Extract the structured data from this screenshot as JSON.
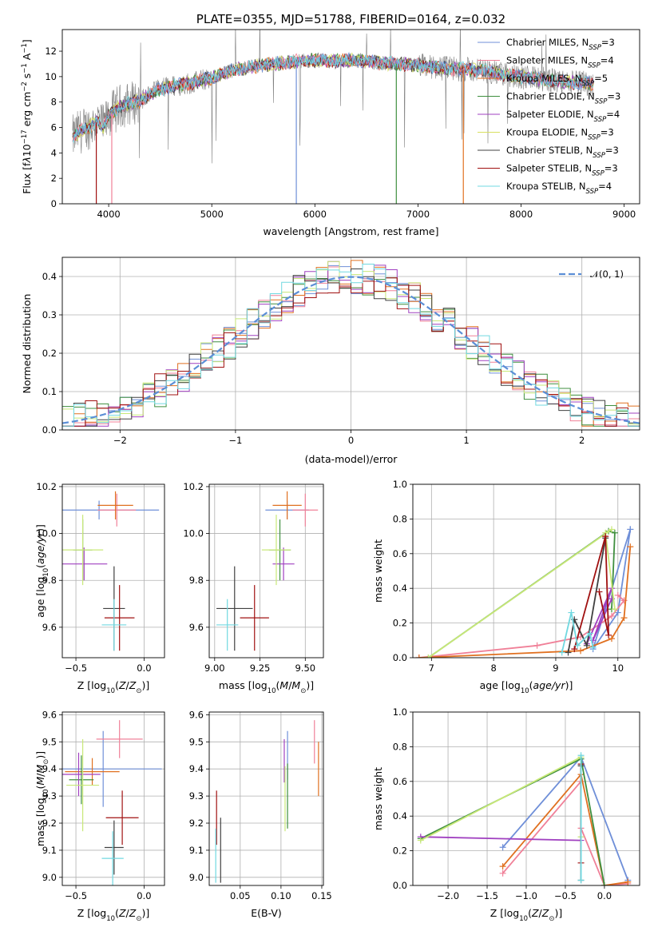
{
  "figure_title": "PLATE=0355, MJD=51788, FIBERID=0164, z=0.032",
  "colors": {
    "models": [
      "#6f8fd8",
      "#f08098",
      "#e07020",
      "#3f8f3f",
      "#a040c0",
      "#d8e060",
      "#404040",
      "#a01010",
      "#70d8e0"
    ],
    "data": "#808080",
    "normal": "#5b8ed6",
    "wide": [
      "#6f8fd8",
      "#f08098",
      "#e07020",
      "#3f8f3f",
      "#a040c0",
      "#c8e878",
      "#404040",
      "#a01010",
      "#70d8e0"
    ]
  },
  "chart_data": [
    {
      "id": "spectrum",
      "type": "line",
      "title": "PLATE=0355, MJD=51788, FIBERID=0164, z=0.032",
      "xlabel": "wavelength [Angstrom, rest frame]",
      "ylabel": "Flux [f",
      "xlim": [
        3550,
        9150
      ],
      "ylim": [
        0,
        13.7
      ],
      "xticks": [
        "4000",
        "5000",
        "6000",
        "7000",
        "8000",
        "9000"
      ],
      "yticks": [
        "0",
        "2",
        "4",
        "6",
        "8",
        "10",
        "12"
      ],
      "legend_position": "upper right",
      "legend": [
        {
          "name": "Chabrier MILES, N",
          "sub": "SSP",
          "tail": "=3"
        },
        {
          "name": "Salpeter MILES, N",
          "sub": "SSP",
          "tail": "=4"
        },
        {
          "name": "Kroupa MILES, N",
          "sub": "SSP",
          "tail": "=5"
        },
        {
          "name": "Chabrier ELODIE, N",
          "sub": "SSP",
          "tail": "=3"
        },
        {
          "name": "Salpeter ELODIE, N",
          "sub": "SSP",
          "tail": "=4"
        },
        {
          "name": "Kroupa ELODIE, N",
          "sub": "SSP",
          "tail": "=3"
        },
        {
          "name": "Chabrier STELIB, N",
          "sub": "SSP",
          "tail": "=3"
        },
        {
          "name": "Salpeter STELIB, N",
          "sub": "SSP",
          "tail": "=3"
        },
        {
          "name": "Kroupa STELIB, N",
          "sub": "SSP",
          "tail": "=4"
        }
      ],
      "continuum": [
        [
          3650,
          5.2
        ],
        [
          3700,
          5.6
        ],
        [
          3800,
          6.0
        ],
        [
          3900,
          6.5
        ],
        [
          3950,
          6.0
        ],
        [
          4000,
          6.9
        ],
        [
          4100,
          7.6
        ],
        [
          4200,
          7.9
        ],
        [
          4300,
          8.1
        ],
        [
          4400,
          8.6
        ],
        [
          4500,
          9.0
        ],
        [
          4600,
          9.2
        ],
        [
          4700,
          9.4
        ],
        [
          4800,
          9.5
        ],
        [
          4900,
          9.7
        ],
        [
          5000,
          9.9
        ],
        [
          5200,
          10.5
        ],
        [
          5400,
          10.8
        ],
        [
          5600,
          11.0
        ],
        [
          5800,
          11.2
        ],
        [
          6000,
          11.3
        ],
        [
          6200,
          11.2
        ],
        [
          6400,
          11.3
        ],
        [
          6600,
          11.1
        ],
        [
          6800,
          11.0
        ],
        [
          7000,
          10.9
        ],
        [
          7200,
          10.7
        ],
        [
          7400,
          10.6
        ],
        [
          7600,
          10.5
        ],
        [
          7800,
          10.2
        ],
        [
          8000,
          10.0
        ],
        [
          8200,
          9.8
        ],
        [
          8400,
          9.6
        ],
        [
          8600,
          9.5
        ],
        [
          8700,
          9.45
        ]
      ]
    },
    {
      "id": "residuals",
      "type": "step",
      "xlabel": "(data-model)/error",
      "ylabel": "Normed distribution",
      "xlim": [
        -2.5,
        2.5
      ],
      "ylim": [
        0,
        0.45
      ],
      "xticks": [
        "−2",
        "−1",
        "0",
        "1",
        "2"
      ],
      "yticks": [
        "0.0",
        "0.1",
        "0.2",
        "0.3",
        "0.4"
      ],
      "bin_width": 0.1,
      "reference_label": "𝒩(0, 1)",
      "legend_position": "upper right"
    },
    {
      "id": "age_vs_Z",
      "type": "errorbar",
      "xlabel": "Z [log",
      "ylabel": "age  [log",
      "xlim": [
        -0.6,
        0.15
      ],
      "ylim": [
        9.47,
        10.21
      ],
      "xticks": [
        "−0.5",
        "0.0"
      ],
      "yticks": [
        "9.6",
        "9.8",
        "10.0",
        "10.2"
      ],
      "points": [
        {
          "x": -0.33,
          "y": 10.1,
          "xe": 0.44,
          "ye": 0.04,
          "c": 0
        },
        {
          "x": -0.2,
          "y": 10.1,
          "xe": 0.14,
          "ye": 0.07,
          "c": 1
        },
        {
          "x": -0.21,
          "y": 10.12,
          "xe": 0.13,
          "ye": 0.06,
          "c": 2
        },
        {
          "x": -0.45,
          "y": 9.93,
          "xe": 0.07,
          "ye": 0.13,
          "c": 3
        },
        {
          "x": -0.44,
          "y": 9.87,
          "xe": 0.17,
          "ye": 0.07,
          "c": 4
        },
        {
          "x": -0.45,
          "y": 9.93,
          "xe": 0.15,
          "ye": 0.15,
          "c": 5
        },
        {
          "x": -0.22,
          "y": 9.68,
          "xe": 0.08,
          "ye": 0.18,
          "c": 6
        },
        {
          "x": -0.18,
          "y": 9.64,
          "xe": 0.11,
          "ye": 0.14,
          "c": 7
        },
        {
          "x": -0.22,
          "y": 9.61,
          "xe": 0.09,
          "ye": 0.11,
          "c": 8
        }
      ]
    },
    {
      "id": "age_vs_mass",
      "type": "errorbar",
      "xlabel": "mass [log",
      "ylabel": "",
      "xlim": [
        8.97,
        9.6
      ],
      "ylim": [
        9.47,
        10.21
      ],
      "xticks": [
        "9.00",
        "9.25",
        "9.50"
      ],
      "yticks": [
        "9.6",
        "9.8",
        "10.0",
        "10.2"
      ],
      "points": [
        {
          "x": 9.4,
          "y": 10.1,
          "xe": 0.12,
          "ye": 0.04,
          "c": 0
        },
        {
          "x": 9.5,
          "y": 10.1,
          "xe": 0.07,
          "ye": 0.07,
          "c": 1
        },
        {
          "x": 9.4,
          "y": 10.12,
          "xe": 0.08,
          "ye": 0.06,
          "c": 2
        },
        {
          "x": 9.36,
          "y": 9.93,
          "xe": 0.06,
          "ye": 0.13,
          "c": 3
        },
        {
          "x": 9.38,
          "y": 9.87,
          "xe": 0.06,
          "ye": 0.07,
          "c": 4
        },
        {
          "x": 9.34,
          "y": 9.93,
          "xe": 0.08,
          "ye": 0.15,
          "c": 5
        },
        {
          "x": 9.11,
          "y": 9.68,
          "xe": 0.1,
          "ye": 0.18,
          "c": 6
        },
        {
          "x": 9.22,
          "y": 9.64,
          "xe": 0.08,
          "ye": 0.14,
          "c": 7
        },
        {
          "x": 9.07,
          "y": 9.61,
          "xe": 0.06,
          "ye": 0.11,
          "c": 8
        }
      ]
    },
    {
      "id": "mw_vs_age",
      "type": "line",
      "xlabel": "age  [log",
      "ylabel": "mass weight",
      "xlim": [
        6.7,
        10.35
      ],
      "ylim": [
        0,
        1
      ],
      "xticks": [
        "7",
        "8",
        "9",
        "10"
      ],
      "yticks": [
        "0.0",
        "0.2",
        "0.4",
        "0.6",
        "0.8",
        "1.0"
      ],
      "lines": [
        {
          "c": 0,
          "pts": [
            [
              10.2,
              0.74
            ],
            [
              10.0,
              0.26
            ],
            [
              9.6,
              0.05
            ],
            [
              10.2,
              0.74
            ]
          ]
        },
        {
          "c": 1,
          "pts": [
            [
              6.8,
              0.0
            ],
            [
              8.7,
              0.07
            ],
            [
              9.4,
              0.12
            ],
            [
              9.9,
              0.24
            ],
            [
              10.1,
              0.33
            ],
            [
              10.0,
              0.36
            ]
          ]
        },
        {
          "c": 2,
          "pts": [
            [
              6.8,
              0.0
            ],
            [
              9.4,
              0.04
            ],
            [
              9.9,
              0.11
            ],
            [
              10.1,
              0.23
            ],
            [
              10.2,
              0.64
            ]
          ]
        },
        {
          "c": 3,
          "pts": [
            [
              6.95,
              0.0
            ],
            [
              9.85,
              0.73
            ],
            [
              9.95,
              0.72
            ],
            [
              9.9,
              0.28
            ]
          ]
        },
        {
          "c": 4,
          "pts": [
            [
              9.5,
              0.08
            ],
            [
              9.9,
              0.4
            ],
            [
              9.6,
              0.1
            ],
            [
              9.9,
              0.34
            ]
          ]
        },
        {
          "c": 5,
          "pts": [
            [
              6.95,
              0.0
            ],
            [
              9.9,
              0.74
            ],
            [
              9.8,
              0.72
            ],
            [
              9.95,
              0.28
            ]
          ]
        },
        {
          "c": 6,
          "pts": [
            [
              9.2,
              0.03
            ],
            [
              9.3,
              0.22
            ],
            [
              9.5,
              0.07
            ],
            [
              9.8,
              0.69
            ]
          ]
        },
        {
          "c": 7,
          "pts": [
            [
              9.3,
              0.05
            ],
            [
              9.8,
              0.7
            ],
            [
              9.85,
              0.13
            ],
            [
              9.7,
              0.38
            ]
          ]
        },
        {
          "c": 8,
          "pts": [
            [
              9.1,
              0.03
            ],
            [
              9.25,
              0.26
            ],
            [
              9.35,
              0.07
            ],
            [
              9.55,
              0.14
            ],
            [
              9.6,
              0.06
            ]
          ]
        }
      ]
    },
    {
      "id": "mass_vs_Z",
      "type": "errorbar",
      "xlabel": "Z [log",
      "ylabel": "mass [log",
      "xlim": [
        -0.6,
        0.15
      ],
      "ylim": [
        8.97,
        9.61
      ],
      "xticks": [
        "−0.5",
        "0.0"
      ],
      "yticks": [
        "9.0",
        "9.1",
        "9.2",
        "9.3",
        "9.4",
        "9.5",
        "9.6"
      ],
      "points": [
        {
          "x": -0.3,
          "y": 9.4,
          "xe": 0.43,
          "ye": 0.14,
          "c": 0
        },
        {
          "x": -0.18,
          "y": 9.51,
          "xe": 0.17,
          "ye": 0.07,
          "c": 1
        },
        {
          "x": -0.38,
          "y": 9.39,
          "xe": 0.2,
          "ye": 0.05,
          "c": 2
        },
        {
          "x": -0.46,
          "y": 9.36,
          "xe": 0.09,
          "ye": 0.09,
          "c": 3
        },
        {
          "x": -0.48,
          "y": 9.38,
          "xe": 0.16,
          "ye": 0.08,
          "c": 4
        },
        {
          "x": -0.45,
          "y": 9.34,
          "xe": 0.12,
          "ye": 0.17,
          "c": 5
        },
        {
          "x": -0.22,
          "y": 9.11,
          "xe": 0.07,
          "ye": 0.1,
          "c": 6
        },
        {
          "x": -0.16,
          "y": 9.22,
          "xe": 0.12,
          "ye": 0.1,
          "c": 7
        },
        {
          "x": -0.23,
          "y": 9.07,
          "xe": 0.08,
          "ye": 0.1,
          "c": 8
        }
      ]
    },
    {
      "id": "mass_vs_ebv",
      "type": "errorbar",
      "xlabel": "E(B-V)",
      "ylabel": "",
      "xlim": [
        0.012,
        0.152
      ],
      "ylim": [
        8.97,
        9.61
      ],
      "xticks": [
        "0.05",
        "0.10",
        "0.15"
      ],
      "yticks": [
        "9.0",
        "9.1",
        "9.2",
        "9.3",
        "9.4",
        "9.5",
        "9.6"
      ],
      "points": [
        {
          "x": 0.108,
          "y": 9.45,
          "xe": 0.0,
          "ye": 0.09,
          "c": 0
        },
        {
          "x": 0.141,
          "y": 9.5,
          "xe": 0.0,
          "ye": 0.08,
          "c": 1
        },
        {
          "x": 0.146,
          "y": 9.4,
          "xe": 0.0,
          "ye": 0.1,
          "c": 2
        },
        {
          "x": 0.108,
          "y": 9.3,
          "xe": 0.0,
          "ye": 0.12,
          "c": 3
        },
        {
          "x": 0.104,
          "y": 9.43,
          "xe": 0.0,
          "ye": 0.08,
          "c": 4
        },
        {
          "x": 0.105,
          "y": 9.29,
          "xe": 0.0,
          "ye": 0.12,
          "c": 5
        },
        {
          "x": 0.026,
          "y": 9.1,
          "xe": 0.0,
          "ye": 0.12,
          "c": 6
        },
        {
          "x": 0.021,
          "y": 9.22,
          "xe": 0.0,
          "ye": 0.1,
          "c": 7
        },
        {
          "x": 0.02,
          "y": 9.08,
          "xe": 0.0,
          "ye": 0.1,
          "c": 8
        }
      ]
    },
    {
      "id": "mw_vs_Z",
      "type": "line",
      "xlabel": "Z [log",
      "ylabel": "mass weight",
      "xlim": [
        -2.45,
        0.45
      ],
      "ylim": [
        0,
        1
      ],
      "xticks": [
        "−2.0",
        "−1.5",
        "−1.0",
        "−0.5",
        "0.0"
      ],
      "yticks": [
        "0.0",
        "0.2",
        "0.4",
        "0.6",
        "0.8",
        "1.0"
      ],
      "lines": [
        {
          "c": 0,
          "pts": [
            [
              -1.3,
              0.22
            ],
            [
              -0.3,
              0.74
            ],
            [
              0.3,
              0.03
            ]
          ]
        },
        {
          "c": 1,
          "pts": [
            [
              -1.3,
              0.07
            ],
            [
              -0.3,
              0.6
            ],
            [
              -0.3,
              0.33
            ],
            [
              0.0,
              0.0
            ],
            [
              0.3,
              0.01
            ]
          ]
        },
        {
          "c": 2,
          "pts": [
            [
              -1.3,
              0.11
            ],
            [
              -0.3,
              0.64
            ],
            [
              0.0,
              0.0
            ],
            [
              0.3,
              0.02
            ]
          ]
        },
        {
          "c": 3,
          "pts": [
            [
              -2.35,
              0.27
            ],
            [
              -0.3,
              0.73
            ],
            [
              0.0,
              0.0
            ]
          ]
        },
        {
          "c": 4,
          "pts": [
            [
              -2.35,
              0.28
            ],
            [
              -0.3,
              0.26
            ]
          ]
        },
        {
          "c": 5,
          "pts": [
            [
              -2.35,
              0.26
            ],
            [
              -0.3,
              0.74
            ],
            [
              -0.3,
              0.28
            ]
          ]
        },
        {
          "c": 6,
          "pts": [
            [
              -0.3,
              0.69
            ],
            [
              -0.3,
              0.03
            ]
          ]
        },
        {
          "c": 7,
          "pts": [
            [
              -0.3,
              0.7
            ],
            [
              -0.3,
              0.13
            ]
          ]
        },
        {
          "c": 8,
          "pts": [
            [
              -0.3,
              0.75
            ],
            [
              -0.3,
              0.03
            ]
          ]
        }
      ]
    }
  ]
}
